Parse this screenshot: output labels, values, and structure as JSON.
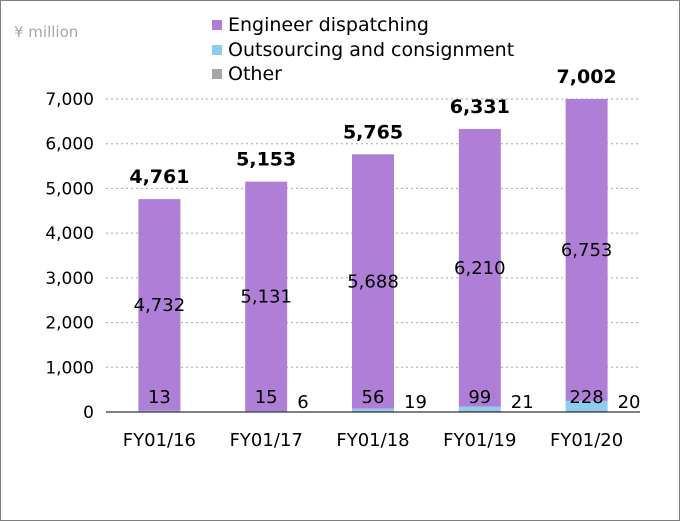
{
  "chart_data": {
    "type": "bar",
    "stacked": true,
    "unit_label": "¥ million",
    "categories": [
      "FY01/16",
      "FY01/17",
      "FY01/18",
      "FY01/19",
      "FY01/20"
    ],
    "series": [
      {
        "name": "Engineer dispatching",
        "color": "#af7fd7",
        "values": [
          4732,
          5131,
          5688,
          6210,
          6753
        ]
      },
      {
        "name": "Outsourcing and consignment",
        "color": "#8fcdf0",
        "values": [
          13,
          15,
          56,
          99,
          228
        ]
      },
      {
        "name": "Other",
        "color": "#a6a6a6",
        "values": [
          16,
          6,
          19,
          21,
          20
        ]
      }
    ],
    "totals": [
      "4,761",
      "5,153",
      "5,765",
      "6,331",
      "7,002"
    ],
    "data_labels": {
      "Engineer dispatching": [
        "4,732",
        "5,131",
        "5,688",
        "6,210",
        "6,753"
      ],
      "Outsourcing and consignment": [
        "13",
        "15",
        "56",
        "99",
        "228"
      ],
      "Other": [
        "",
        "6",
        "19",
        "21",
        "20"
      ]
    },
    "yticks": [
      "0",
      "1,000",
      "2,000",
      "3,000",
      "4,000",
      "5,000",
      "6,000",
      "7,000"
    ],
    "ytick_values": [
      0,
      1000,
      2000,
      3000,
      4000,
      5000,
      6000,
      7000
    ],
    "ylim": [
      0,
      7000
    ],
    "grid": true,
    "legend_position": "top"
  }
}
